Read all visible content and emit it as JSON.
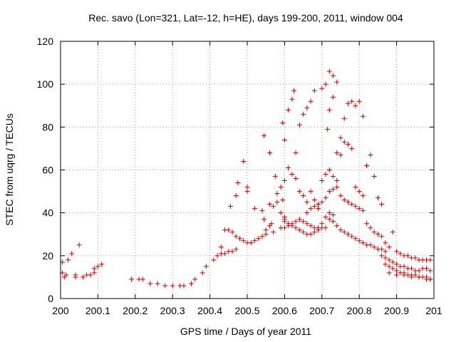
{
  "chart_data": {
    "type": "scatter",
    "title": "Rec. savo (Lon=321, Lat=-12, h=HE), days 199-200, 2011, window 004",
    "xlabel": "GPS time / Days of year 2011",
    "ylabel": "STEC from uqrg / TECUs",
    "xlim": [
      200,
      201
    ],
    "ylim": [
      0,
      120
    ],
    "grid": true,
    "marker": "+",
    "color": "#cc0000",
    "x_ticks": [
      200,
      200.1,
      200.2,
      200.3,
      200.4,
      200.5,
      200.6,
      200.7,
      200.8,
      200.9,
      201
    ],
    "x_tick_labels": [
      "200",
      "200.1",
      "200.2",
      "200.3",
      "200.4",
      "200.5",
      "200.6",
      "200.7",
      "200.8",
      "200.9",
      "201"
    ],
    "y_ticks": [
      0,
      20,
      40,
      60,
      80,
      100,
      120
    ],
    "y_tick_labels": [
      "0",
      "20",
      "40",
      "60",
      "80",
      "100",
      "120"
    ],
    "points": [
      [
        200.005,
        17
      ],
      [
        200.01,
        10
      ],
      [
        200.005,
        12
      ],
      [
        200.015,
        11
      ],
      [
        200.02,
        18
      ],
      [
        200.03,
        21
      ],
      [
        200.04,
        10
      ],
      [
        200.04,
        11
      ],
      [
        200.05,
        25
      ],
      [
        200.06,
        10
      ],
      [
        200.07,
        11
      ],
      [
        200.08,
        11
      ],
      [
        200.09,
        12
      ],
      [
        200.09,
        14
      ],
      [
        200.1,
        15
      ],
      [
        200.11,
        16
      ],
      [
        200.19,
        9
      ],
      [
        200.21,
        9
      ],
      [
        200.22,
        9
      ],
      [
        200.24,
        7
      ],
      [
        200.26,
        7
      ],
      [
        200.28,
        6
      ],
      [
        200.3,
        6
      ],
      [
        200.32,
        6
      ],
      [
        200.33,
        6
      ],
      [
        200.35,
        7
      ],
      [
        200.36,
        9
      ],
      [
        200.38,
        12
      ],
      [
        200.39,
        15
      ],
      [
        200.41,
        18
      ],
      [
        200.42,
        20
      ],
      [
        200.43,
        21
      ],
      [
        200.44,
        21
      ],
      [
        200.45,
        22
      ],
      [
        200.46,
        22
      ],
      [
        200.47,
        23
      ],
      [
        200.43,
        24
      ],
      [
        200.44,
        32
      ],
      [
        200.45,
        32
      ],
      [
        200.46,
        31
      ],
      [
        200.47,
        29
      ],
      [
        200.48,
        28
      ],
      [
        200.49,
        27
      ],
      [
        200.5,
        26
      ],
      [
        200.51,
        26
      ],
      [
        200.455,
        43
      ],
      [
        200.47,
        48
      ],
      [
        200.475,
        54
      ],
      [
        200.49,
        64
      ],
      [
        200.5,
        52
      ],
      [
        200.5,
        50
      ],
      [
        200.52,
        42
      ],
      [
        200.54,
        41
      ],
      [
        200.545,
        37
      ],
      [
        200.56,
        44
      ],
      [
        200.54,
        29
      ],
      [
        200.55,
        32
      ],
      [
        200.56,
        34
      ],
      [
        200.565,
        35
      ],
      [
        200.57,
        43
      ],
      [
        200.58,
        45
      ],
      [
        200.59,
        40
      ],
      [
        200.6,
        38
      ],
      [
        200.6,
        37
      ],
      [
        200.545,
        76
      ],
      [
        200.56,
        68
      ],
      [
        200.575,
        57
      ],
      [
        200.58,
        49
      ],
      [
        200.59,
        52
      ],
      [
        200.595,
        46
      ],
      [
        200.6,
        55
      ],
      [
        200.61,
        88
      ],
      [
        200.62,
        93
      ],
      [
        200.625,
        97
      ],
      [
        200.63,
        68
      ],
      [
        200.64,
        81
      ],
      [
        200.65,
        86
      ],
      [
        200.66,
        89
      ],
      [
        200.67,
        92
      ],
      [
        200.68,
        97
      ],
      [
        200.595,
        82
      ],
      [
        200.6,
        74
      ],
      [
        200.61,
        61
      ],
      [
        200.62,
        58
      ],
      [
        200.63,
        56
      ],
      [
        200.64,
        50
      ],
      [
        200.65,
        48
      ],
      [
        200.66,
        45
      ],
      [
        200.67,
        50
      ],
      [
        200.68,
        46
      ],
      [
        200.69,
        44
      ],
      [
        200.52,
        27
      ],
      [
        200.53,
        28
      ],
      [
        200.55,
        30
      ],
      [
        200.57,
        31
      ],
      [
        200.59,
        33
      ],
      [
        200.6,
        33
      ],
      [
        200.61,
        34
      ],
      [
        200.62,
        35
      ],
      [
        200.63,
        36
      ],
      [
        200.64,
        37
      ],
      [
        200.65,
        36
      ],
      [
        200.66,
        35
      ],
      [
        200.67,
        34
      ],
      [
        200.68,
        33
      ],
      [
        200.69,
        33
      ],
      [
        200.7,
        33
      ],
      [
        200.71,
        33
      ],
      [
        200.6,
        36
      ],
      [
        200.61,
        35
      ],
      [
        200.62,
        34
      ],
      [
        200.63,
        33
      ],
      [
        200.64,
        32
      ],
      [
        200.65,
        31
      ],
      [
        200.66,
        30
      ],
      [
        200.67,
        30
      ],
      [
        200.68,
        31
      ],
      [
        200.69,
        32
      ],
      [
        200.7,
        35
      ],
      [
        200.71,
        38
      ],
      [
        200.72,
        40
      ],
      [
        200.73,
        39
      ],
      [
        200.66,
        40
      ],
      [
        200.67,
        42
      ],
      [
        200.68,
        43
      ],
      [
        200.69,
        42
      ],
      [
        200.7,
        45
      ],
      [
        200.71,
        47
      ],
      [
        200.72,
        50
      ],
      [
        200.73,
        51
      ],
      [
        200.74,
        52
      ],
      [
        200.75,
        48
      ],
      [
        200.76,
        46
      ],
      [
        200.77,
        45
      ],
      [
        200.78,
        44
      ],
      [
        200.79,
        43
      ],
      [
        200.8,
        42
      ],
      [
        200.81,
        41
      ],
      [
        200.7,
        98
      ],
      [
        200.71,
        100
      ],
      [
        200.72,
        106
      ],
      [
        200.73,
        104
      ],
      [
        200.74,
        101
      ],
      [
        200.715,
        79
      ],
      [
        200.72,
        88
      ],
      [
        200.73,
        94
      ],
      [
        200.74,
        68
      ],
      [
        200.75,
        67
      ],
      [
        200.76,
        84
      ],
      [
        200.77,
        91
      ],
      [
        200.78,
        92
      ],
      [
        200.79,
        90
      ],
      [
        200.8,
        92
      ],
      [
        200.81,
        85
      ],
      [
        200.7,
        55
      ],
      [
        200.71,
        58
      ],
      [
        200.72,
        60
      ],
      [
        200.73,
        57
      ],
      [
        200.74,
        55
      ],
      [
        200.75,
        75
      ],
      [
        200.76,
        73
      ],
      [
        200.77,
        72
      ],
      [
        200.78,
        70
      ],
      [
        200.79,
        52
      ],
      [
        200.8,
        50
      ],
      [
        200.81,
        48
      ],
      [
        200.82,
        62
      ],
      [
        200.83,
        67
      ],
      [
        200.84,
        57
      ],
      [
        200.85,
        47
      ],
      [
        200.86,
        44
      ],
      [
        200.72,
        37
      ],
      [
        200.73,
        36
      ],
      [
        200.74,
        34
      ],
      [
        200.75,
        32
      ],
      [
        200.76,
        31
      ],
      [
        200.77,
        30
      ],
      [
        200.78,
        29
      ],
      [
        200.79,
        28
      ],
      [
        200.8,
        27
      ],
      [
        200.81,
        26
      ],
      [
        200.82,
        25
      ],
      [
        200.83,
        25
      ],
      [
        200.84,
        24
      ],
      [
        200.85,
        23
      ],
      [
        200.86,
        23
      ],
      [
        200.87,
        22
      ],
      [
        200.82,
        35
      ],
      [
        200.83,
        33
      ],
      [
        200.84,
        31
      ],
      [
        200.85,
        30
      ],
      [
        200.86,
        29
      ],
      [
        200.87,
        26
      ],
      [
        200.88,
        24
      ],
      [
        200.89,
        31
      ],
      [
        200.9,
        22
      ],
      [
        200.91,
        21
      ],
      [
        200.92,
        20
      ],
      [
        200.93,
        20
      ],
      [
        200.94,
        19
      ],
      [
        200.95,
        19
      ],
      [
        200.96,
        18
      ],
      [
        200.97,
        18
      ],
      [
        200.98,
        18
      ],
      [
        200.99,
        18
      ],
      [
        200.86,
        20
      ],
      [
        200.87,
        19
      ],
      [
        200.88,
        18
      ],
      [
        200.89,
        17
      ],
      [
        200.9,
        16
      ],
      [
        200.91,
        15
      ],
      [
        200.92,
        15
      ],
      [
        200.93,
        14
      ],
      [
        200.94,
        14
      ],
      [
        200.95,
        13
      ],
      [
        200.96,
        13
      ],
      [
        200.97,
        14
      ],
      [
        200.98,
        14
      ],
      [
        200.99,
        13
      ],
      [
        200.87,
        16
      ],
      [
        200.88,
        15
      ],
      [
        200.89,
        14
      ],
      [
        200.9,
        13
      ],
      [
        200.91,
        12
      ],
      [
        200.92,
        12
      ],
      [
        200.93,
        11
      ],
      [
        200.94,
        11
      ],
      [
        200.95,
        11
      ],
      [
        200.96,
        10
      ],
      [
        200.97,
        10
      ],
      [
        200.98,
        10
      ],
      [
        200.99,
        9
      ],
      [
        200.88,
        12
      ],
      [
        200.9,
        11
      ],
      [
        200.92,
        11
      ],
      [
        200.94,
        10
      ],
      [
        200.96,
        10
      ],
      [
        200.98,
        9
      ],
      [
        200.99,
        9
      ]
    ]
  }
}
